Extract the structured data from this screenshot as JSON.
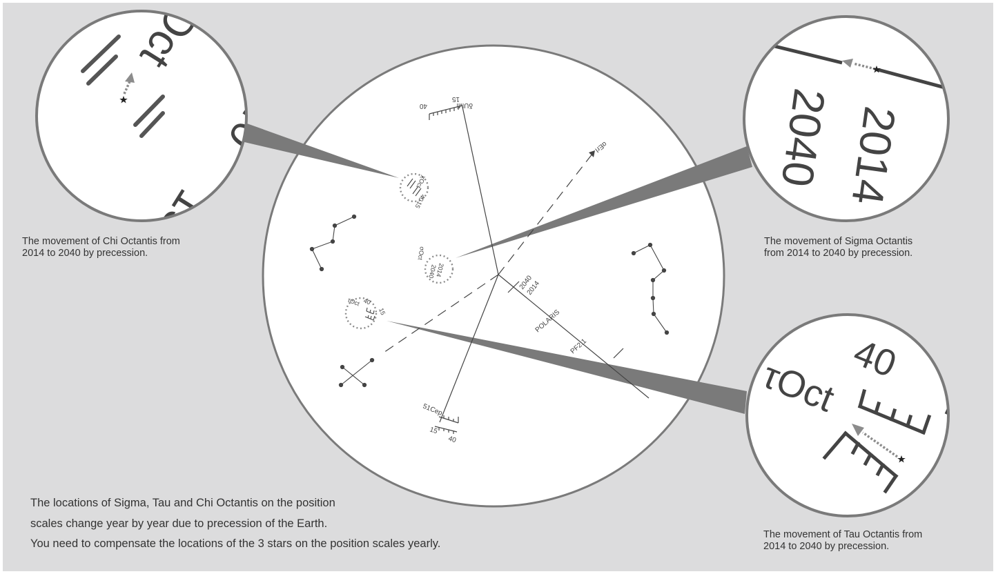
{
  "labels": {
    "ursa_minor": "δUMi",
    "delta_cepheus": "51Cep",
    "tau_octantis": "τOct",
    "chi_octantis": "χOct",
    "sigma_octantis": "σOct",
    "pole": "PF2:1",
    "polaris": "POLARIS",
    "direction": "αErI",
    "year_2014": "2014",
    "year_2040": "2040",
    "scale_15": "15",
    "scale_40": "40"
  },
  "captions": {
    "chi": [
      "The movement of Chi Octantis from",
      "2014 to 2040 by precession."
    ],
    "sigma": [
      "The movement of Sigma Octantis",
      "from 2014 to 2040 by precession."
    ],
    "tau": [
      "The movement of Tau Octantis from",
      "2014 to 2040 by precession."
    ]
  },
  "note": [
    "The locations of Sigma, Tau and Chi Octantis on the position",
    "scales change year by year due to precession of the Earth.",
    "You need to compensate the locations of the 3 stars on the position scales yearly."
  ],
  "colors": {
    "background": "#dcdcdd",
    "reticle": "#ffffff",
    "ring": "#7a7a7a",
    "line": "#444444",
    "callout": "#7a7a7a",
    "arrow": "#8c8c8c"
  }
}
